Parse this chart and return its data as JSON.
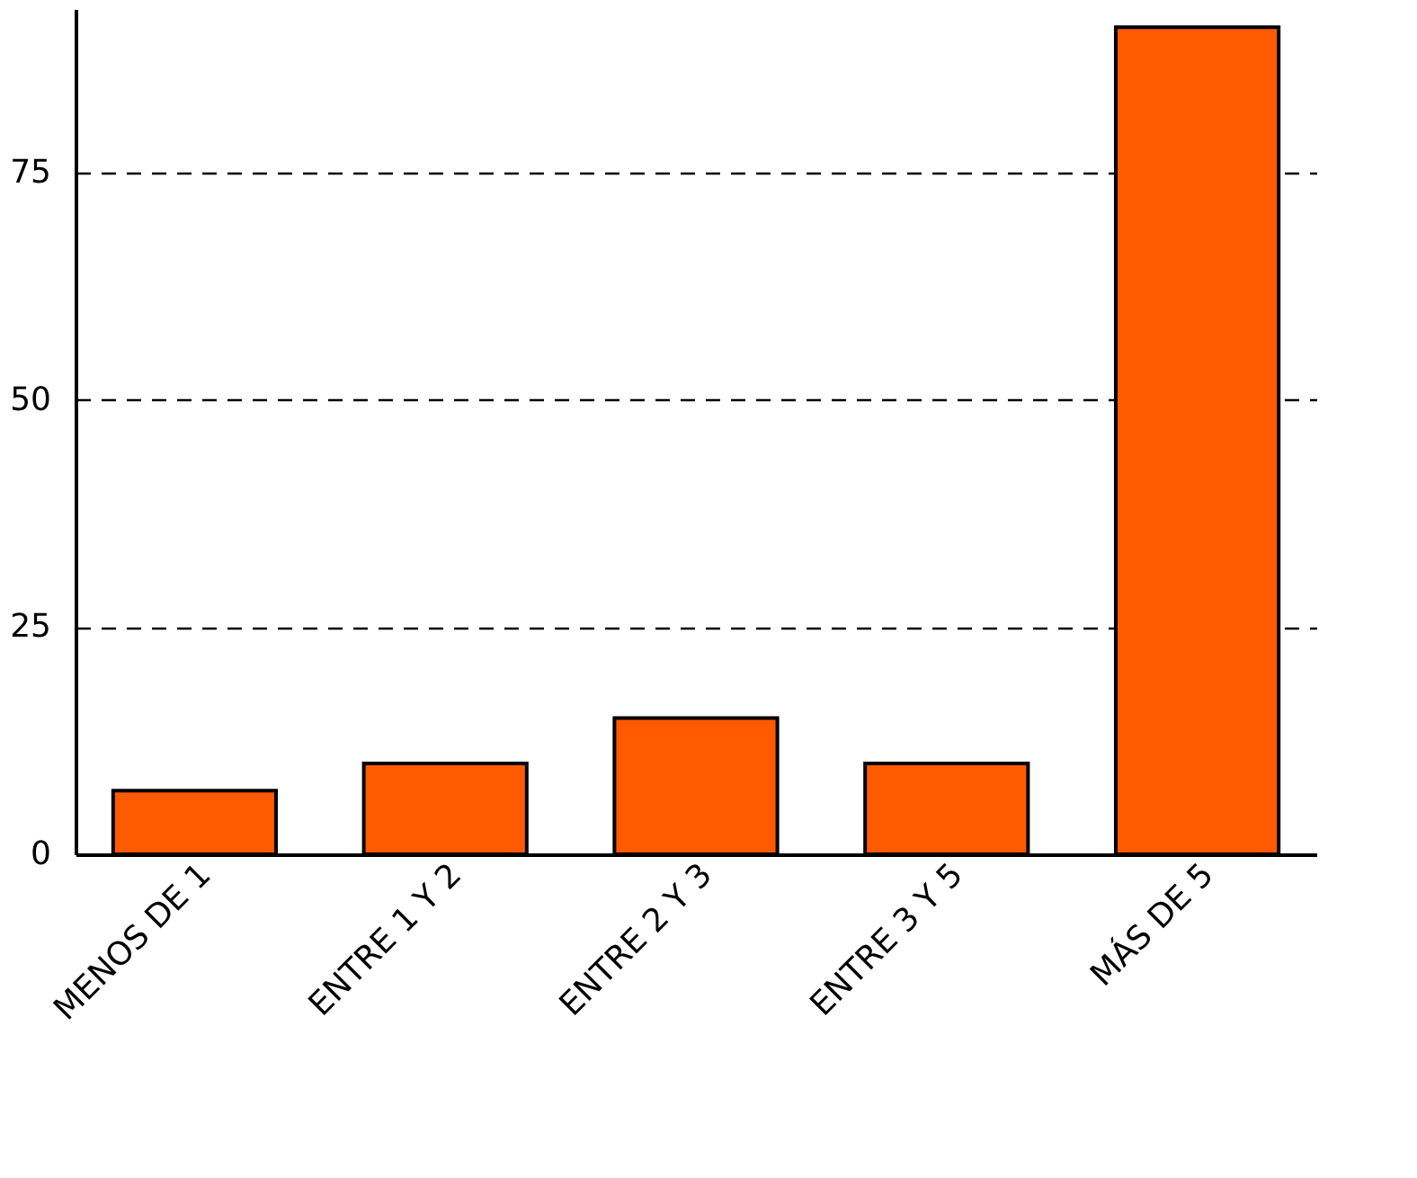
{
  "chart_data": {
    "type": "bar",
    "categories": [
      "MENOS DE 1",
      "ENTRE 1 Y 2",
      "ENTRE 2 Y 3",
      "ENTRE 3 Y 5",
      "MÁS DE 5"
    ],
    "values": [
      7,
      10,
      15,
      10,
      91
    ],
    "color": "#ff5a00",
    "ylim": [
      0,
      93
    ],
    "yticks": [
      0,
      25,
      50,
      75
    ],
    "grid": "y",
    "line_style": "dashed"
  }
}
